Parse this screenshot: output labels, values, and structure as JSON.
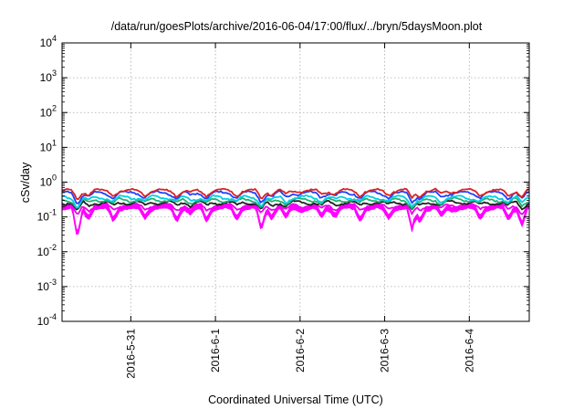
{
  "chart_data": {
    "type": "line",
    "title": "/data/run/goesPlots/archive/2016-06-04/17:00/flux/../bryn/5daysMoon.plot",
    "xlabel": "Coordinated Universal Time (UTC)",
    "ylabel": "cSv/day",
    "yscale": "log",
    "ylim": [
      0.0001,
      10000
    ],
    "y_ticks": [
      {
        "value": 0.0001,
        "base": "10",
        "exp": "-4"
      },
      {
        "value": 0.001,
        "base": "10",
        "exp": "-3"
      },
      {
        "value": 0.01,
        "base": "10",
        "exp": "-2"
      },
      {
        "value": 0.1,
        "base": "10",
        "exp": "-1"
      },
      {
        "value": 1,
        "base": "10",
        "exp": "0"
      },
      {
        "value": 10,
        "base": "10",
        "exp": "1"
      },
      {
        "value": 100,
        "base": "10",
        "exp": "2"
      },
      {
        "value": 1000,
        "base": "10",
        "exp": "3"
      },
      {
        "value": 10000,
        "base": "10",
        "exp": "4"
      }
    ],
    "xlim": [
      "2016-05-30T04:30",
      "2016-06-04T17:00"
    ],
    "x_ticks": [
      {
        "value": "2016-05-31T00:00",
        "label": "2016-5-31"
      },
      {
        "value": "2016-06-01T00:00",
        "label": "2016-6-1"
      },
      {
        "value": "2016-06-02T00:00",
        "label": "2016-6-2"
      },
      {
        "value": "2016-06-03T00:00",
        "label": "2016-6-3"
      },
      {
        "value": "2016-06-04T00:00",
        "label": "2016-6-4"
      }
    ],
    "grid": true,
    "legend": "none",
    "series": [
      {
        "color": "#dd2222",
        "base": 0.56,
        "dip": 0.82
      },
      {
        "color": "#1f3fff",
        "base": 0.48,
        "dip": 0.75
      },
      {
        "color": "#00d0e0",
        "base": 0.36,
        "dip": 0.85
      },
      {
        "color": "#20b070",
        "base": 0.31,
        "dip": 0.85
      },
      {
        "color": "#222222",
        "base": 0.26,
        "dip": 0.85
      },
      {
        "color": "#ee00ee",
        "base": 0.21,
        "dip": 0.6
      },
      {
        "color": "#ff00ff",
        "base": 0.16,
        "dip": 0.3,
        "fill": true
      }
    ],
    "dip_events": [
      {
        "t": "2016-05-30T08:50",
        "depth": 0.7
      },
      {
        "t": "2016-05-30T12:00",
        "depth": 0.3
      },
      {
        "t": "2016-05-30T19:00",
        "depth": 0.35
      },
      {
        "t": "2016-05-31T04:00",
        "depth": 0.3
      },
      {
        "t": "2016-05-31T13:00",
        "depth": 0.35
      },
      {
        "t": "2016-05-31T17:00",
        "depth": 0.25
      },
      {
        "t": "2016-05-31T21:30",
        "depth": 0.35
      },
      {
        "t": "2016-06-01T06:00",
        "depth": 0.3
      },
      {
        "t": "2016-06-01T13:00",
        "depth": 0.6
      },
      {
        "t": "2016-06-01T16:00",
        "depth": 0.3
      },
      {
        "t": "2016-06-01T20:00",
        "depth": 0.35
      },
      {
        "t": "2016-06-02T06:00",
        "depth": 0.3
      },
      {
        "t": "2016-06-02T10:00",
        "depth": 0.25
      },
      {
        "t": "2016-06-02T17:00",
        "depth": 0.35
      },
      {
        "t": "2016-06-03T01:00",
        "depth": 0.3
      },
      {
        "t": "2016-06-03T07:45",
        "depth": 0.6
      },
      {
        "t": "2016-06-03T10:00",
        "depth": 0.4
      },
      {
        "t": "2016-06-03T16:00",
        "depth": 0.3
      },
      {
        "t": "2016-06-04T03:00",
        "depth": 0.3
      },
      {
        "t": "2016-06-04T11:00",
        "depth": 0.35
      },
      {
        "t": "2016-06-04T15:00",
        "depth": 0.5
      }
    ]
  }
}
